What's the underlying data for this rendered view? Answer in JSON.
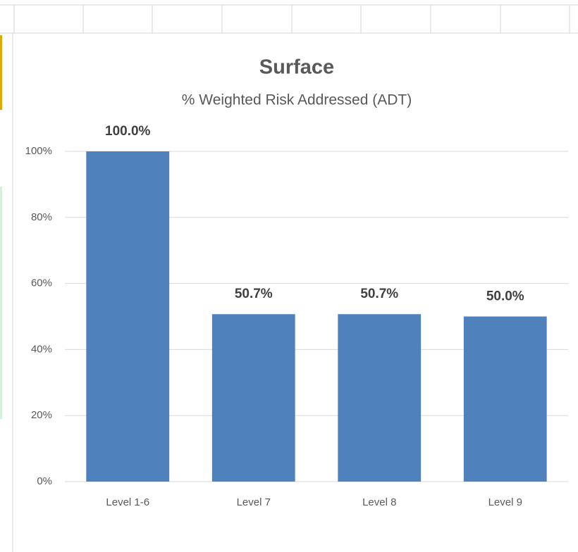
{
  "chart_data": {
    "type": "bar",
    "title": "Surface",
    "subtitle": "% Weighted Risk Addressed (ADT)",
    "categories": [
      "Level 1-6",
      "Level 7",
      "Level 8",
      "Level 9"
    ],
    "values": [
      100,
      50.7,
      50.7,
      50.0
    ],
    "value_labels": [
      "100.0%",
      "50.7%",
      "50.7%",
      "50.0%"
    ],
    "color": "#4f81bd",
    "ylim": [
      0,
      100
    ],
    "yticks": [
      {
        "value": 0,
        "label": "0%"
      },
      {
        "value": 20,
        "label": "20%"
      },
      {
        "value": 40,
        "label": "40%"
      },
      {
        "value": 60,
        "label": "60%"
      },
      {
        "value": 80,
        "label": "80%"
      },
      {
        "value": 100,
        "label": "100%"
      }
    ],
    "grid": true
  }
}
